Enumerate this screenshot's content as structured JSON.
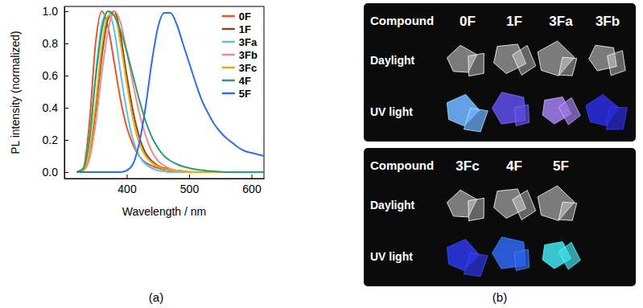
{
  "chart_data": {
    "type": "line",
    "caption": "(a)",
    "x_label": "Wavelength / nm",
    "y_label": "PL intensity (normalized)",
    "x": [
      320,
      330,
      340,
      350,
      360,
      370,
      380,
      390,
      400,
      410,
      420,
      430,
      440,
      450,
      460,
      470,
      480,
      490,
      500,
      510,
      520,
      530,
      540,
      550,
      560,
      570,
      580,
      590,
      600,
      610,
      620
    ],
    "xlim": [
      300,
      620
    ],
    "xticks": [
      400,
      500,
      600
    ],
    "ylim": [
      -0.04,
      1.03
    ],
    "yticks": [
      {
        "value": 0,
        "label": "0.0"
      },
      0.2,
      0.4,
      0.6,
      0.8,
      {
        "value": 1,
        "label": "1.0"
      }
    ],
    "legend": "upper right",
    "series": [
      {
        "name": "0F",
        "color": "#e8542a",
        "values": [
          0,
          0.02,
          0.3,
          0.8,
          1.0,
          0.9,
          0.68,
          0.45,
          0.28,
          0.17,
          0.1,
          0.06,
          0.04,
          0.025,
          0.015,
          0.01,
          0.005,
          0,
          0,
          0,
          0,
          0,
          0,
          0,
          0,
          0,
          0,
          0,
          0,
          0,
          0
        ]
      },
      {
        "name": "1F",
        "color": "#7b4a1e",
        "values": [
          0,
          0.01,
          0.1,
          0.38,
          0.72,
          0.95,
          1.0,
          0.85,
          0.6,
          0.38,
          0.22,
          0.12,
          0.07,
          0.04,
          0.025,
          0.015,
          0.01,
          0.005,
          0,
          0,
          0,
          0,
          0,
          0,
          0,
          0,
          0,
          0,
          0,
          0,
          0
        ]
      },
      {
        "name": "3Fa",
        "color": "#5bc2ee",
        "values": [
          0,
          0.02,
          0.2,
          0.6,
          0.92,
          1.0,
          0.88,
          0.62,
          0.38,
          0.2,
          0.1,
          0.05,
          0.025,
          0.01,
          0.005,
          0,
          0,
          0,
          0,
          0,
          0,
          0,
          0,
          0,
          0,
          0,
          0,
          0,
          0,
          0,
          0
        ]
      },
      {
        "name": "3Fb",
        "color": "#f28a8a",
        "values": [
          0,
          0.01,
          0.08,
          0.3,
          0.62,
          0.88,
          1.0,
          0.93,
          0.75,
          0.55,
          0.37,
          0.23,
          0.13,
          0.07,
          0.04,
          0.02,
          0.01,
          0.005,
          0,
          0,
          0,
          0,
          0,
          0,
          0,
          0,
          0,
          0,
          0,
          0,
          0
        ]
      },
      {
        "name": "3Fc",
        "color": "#f0a70a",
        "values": [
          0,
          0.01,
          0.12,
          0.42,
          0.78,
          0.97,
          0.98,
          0.8,
          0.55,
          0.33,
          0.18,
          0.1,
          0.06,
          0.035,
          0.02,
          0.012,
          0.008,
          0.005,
          0.003,
          0,
          0,
          0,
          0,
          0,
          0,
          0,
          0,
          0,
          0,
          0,
          0
        ]
      },
      {
        "name": "4F",
        "color": "#2a9d6f",
        "values": [
          0,
          0.02,
          0.2,
          0.58,
          0.88,
          1.0,
          0.97,
          0.88,
          0.75,
          0.6,
          0.45,
          0.32,
          0.22,
          0.15,
          0.1,
          0.07,
          0.05,
          0.035,
          0.025,
          0.017,
          0.012,
          0.008,
          0.005,
          0.003,
          0,
          0,
          0,
          0,
          0,
          0,
          0
        ]
      },
      {
        "name": "5F",
        "color": "#2f6fe0",
        "values": [
          0,
          0,
          0,
          0,
          0,
          0,
          0,
          0,
          0.01,
          0.05,
          0.18,
          0.4,
          0.68,
          0.9,
          0.99,
          0.99,
          0.92,
          0.8,
          0.68,
          0.56,
          0.45,
          0.37,
          0.3,
          0.25,
          0.21,
          0.18,
          0.15,
          0.13,
          0.12,
          0.11,
          0.1
        ]
      }
    ]
  },
  "photo_table": {
    "caption": "(b)",
    "groups": [
      {
        "header": "Compound",
        "columns": [
          "0F",
          "1F",
          "3Fa",
          "3Fb"
        ],
        "rows": [
          {
            "label": "Daylight"
          },
          {
            "label": "UV light",
            "colors": [
              "#6fb0ff",
              "#5a4be0",
              "#9a7ae6",
              "#2a2ad6"
            ]
          }
        ]
      },
      {
        "header": "Compound",
        "columns": [
          "3Fc",
          "4F",
          "5F"
        ],
        "rows": [
          {
            "label": "Daylight"
          },
          {
            "label": "UV light",
            "colors": [
              "#2b35dc",
              "#2e62ea",
              "#3fd8e4"
            ]
          }
        ]
      }
    ]
  }
}
